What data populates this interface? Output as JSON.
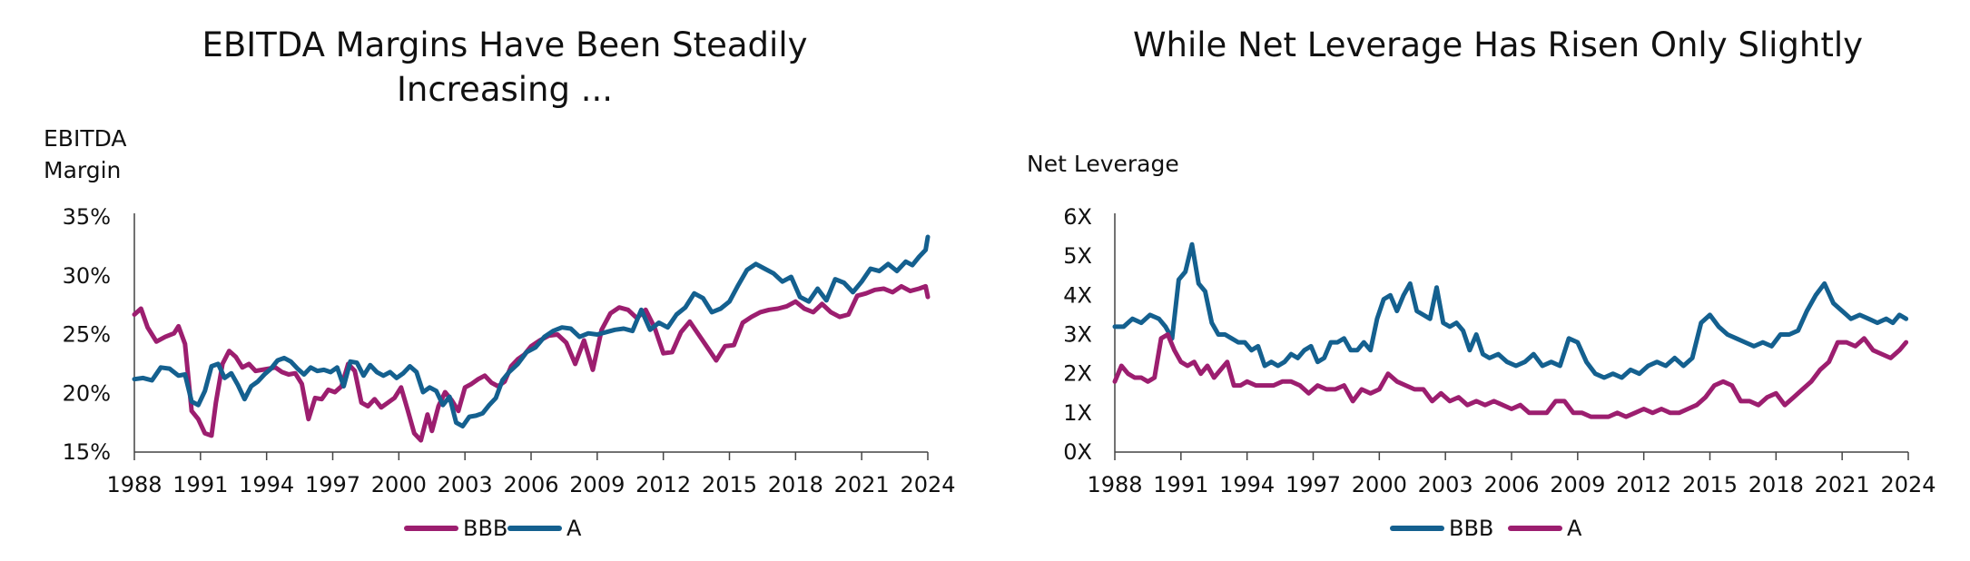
{
  "colors": {
    "bbb": "#9c1e6f",
    "a": "#14608f",
    "axis": "#444444",
    "text": "#111111"
  },
  "chart_data": [
    {
      "type": "line",
      "title": "EBITDA Margins Have Been Steadily Increasing ...",
      "title_lines": [
        "EBITDA Margins Have Been Steadily",
        "Increasing ..."
      ],
      "ylabel": "EBITDA Margin",
      "ylabel_lines": [
        "EBITDA",
        "Margin"
      ],
      "xlabel": "",
      "xlim": [
        1988,
        2024
      ],
      "ylim": [
        15,
        35
      ],
      "x_ticks": [
        "1988",
        "1991",
        "1994",
        "1997",
        "2000",
        "2003",
        "2006",
        "2009",
        "2012",
        "2015",
        "2018",
        "2021",
        "2024"
      ],
      "y_ticks": [
        "15%",
        "20%",
        "25%",
        "30%",
        "35%"
      ],
      "y_tick_values": [
        15,
        20,
        25,
        30,
        35
      ],
      "grid": false,
      "legend": "bottom",
      "series": [
        {
          "name": "BBB",
          "color_key": "bbb",
          "x": [
            1988.0,
            1988.3,
            1988.6,
            1989.0,
            1989.4,
            1989.8,
            1990.0,
            1990.3,
            1990.6,
            1990.9,
            1991.2,
            1991.5,
            1991.7,
            1992.0,
            1992.3,
            1992.6,
            1992.9,
            1993.2,
            1993.5,
            1993.8,
            1994.1,
            1994.4,
            1994.7,
            1995.0,
            1995.3,
            1995.6,
            1995.9,
            1996.2,
            1996.5,
            1996.8,
            1997.1,
            1997.4,
            1997.7,
            1998.0,
            1998.3,
            1998.6,
            1998.9,
            1999.2,
            1999.5,
            1999.8,
            2000.1,
            2000.4,
            2000.7,
            2001.0,
            2001.3,
            2001.5,
            2001.8,
            2002.1,
            2002.4,
            2002.7,
            2003.0,
            2003.3,
            2003.6,
            2003.9,
            2004.2,
            2004.5,
            2004.8,
            2005.1,
            2005.4,
            2005.7,
            2006.0,
            2006.4,
            2006.8,
            2007.2,
            2007.6,
            2008.0,
            2008.4,
            2008.8,
            2009.2,
            2009.6,
            2010.0,
            2010.4,
            2010.8,
            2011.2,
            2011.6,
            2012.0,
            2012.4,
            2012.8,
            2013.2,
            2013.6,
            2014.0,
            2014.4,
            2014.8,
            2015.2,
            2015.6,
            2016.0,
            2016.4,
            2016.8,
            2017.2,
            2017.6,
            2018.0,
            2018.4,
            2018.8,
            2019.2,
            2019.6,
            2020.0,
            2020.4,
            2020.8,
            2021.2,
            2021.6,
            2022.0,
            2022.4,
            2022.8,
            2023.2,
            2023.6,
            2023.9,
            2024.0
          ],
          "values": [
            26.7,
            27.2,
            25.6,
            24.4,
            24.8,
            25.1,
            25.7,
            24.2,
            18.5,
            17.8,
            16.6,
            16.4,
            19.2,
            22.5,
            23.6,
            23.1,
            22.2,
            22.5,
            21.9,
            22.0,
            22.1,
            22.2,
            21.8,
            21.6,
            21.7,
            20.8,
            17.8,
            19.6,
            19.5,
            20.3,
            20.1,
            20.6,
            22.5,
            21.9,
            19.2,
            18.9,
            19.5,
            18.8,
            19.2,
            19.6,
            20.5,
            18.6,
            16.6,
            16.0,
            18.2,
            16.8,
            18.9,
            20.1,
            19.4,
            18.5,
            20.5,
            20.8,
            21.2,
            21.5,
            20.9,
            20.6,
            21.0,
            22.3,
            22.9,
            23.3,
            24.0,
            24.5,
            24.9,
            25.0,
            24.3,
            22.5,
            24.5,
            22.0,
            25.4,
            26.8,
            27.3,
            27.1,
            26.4,
            27.1,
            25.6,
            23.4,
            23.5,
            25.2,
            26.1,
            25.0,
            23.9,
            22.8,
            24.0,
            24.1,
            26.0,
            26.5,
            26.9,
            27.1,
            27.2,
            27.4,
            27.8,
            27.2,
            26.9,
            27.6,
            26.9,
            26.5,
            26.7,
            28.3,
            28.5,
            28.8,
            28.9,
            28.6,
            29.1,
            28.7,
            28.9,
            29.1,
            28.2
          ]
        },
        {
          "name": "A",
          "color_key": "a",
          "x": [
            1988.0,
            1988.4,
            1988.8,
            1989.2,
            1989.6,
            1990.0,
            1990.3,
            1990.6,
            1990.9,
            1991.2,
            1991.5,
            1991.8,
            1992.1,
            1992.4,
            1992.7,
            1993.0,
            1993.3,
            1993.6,
            1993.9,
            1994.2,
            1994.5,
            1994.8,
            1995.1,
            1995.4,
            1995.7,
            1996.0,
            1996.3,
            1996.6,
            1996.9,
            1997.2,
            1997.5,
            1997.8,
            1998.1,
            1998.4,
            1998.7,
            1999.0,
            1999.3,
            1999.6,
            1999.9,
            2000.2,
            2000.5,
            2000.8,
            2001.1,
            2001.4,
            2001.7,
            2002.0,
            2002.3,
            2002.6,
            2002.9,
            2003.2,
            2003.5,
            2003.8,
            2004.1,
            2004.4,
            2004.7,
            2005.0,
            2005.4,
            2005.8,
            2006.2,
            2006.6,
            2007.0,
            2007.4,
            2007.8,
            2008.2,
            2008.6,
            2009.0,
            2009.4,
            2009.8,
            2010.2,
            2010.6,
            2011.0,
            2011.4,
            2011.8,
            2012.2,
            2012.6,
            2013.0,
            2013.4,
            2013.8,
            2014.2,
            2014.6,
            2015.0,
            2015.4,
            2015.8,
            2016.2,
            2016.6,
            2017.0,
            2017.4,
            2017.8,
            2018.2,
            2018.6,
            2019.0,
            2019.4,
            2019.8,
            2020.2,
            2020.6,
            2021.0,
            2021.4,
            2021.8,
            2022.2,
            2022.6,
            2023.0,
            2023.3,
            2023.6,
            2023.9,
            2024.0
          ],
          "values": [
            21.2,
            21.3,
            21.1,
            22.2,
            22.1,
            21.5,
            21.6,
            19.3,
            19.0,
            20.2,
            22.3,
            22.5,
            21.3,
            21.7,
            20.7,
            19.5,
            20.6,
            21.0,
            21.6,
            22.1,
            22.8,
            23.0,
            22.7,
            22.1,
            21.6,
            22.2,
            21.9,
            22.0,
            21.8,
            22.2,
            20.6,
            22.7,
            22.6,
            21.5,
            22.4,
            21.8,
            21.5,
            21.8,
            21.3,
            21.7,
            22.3,
            21.8,
            20.1,
            20.5,
            20.2,
            19.0,
            19.7,
            17.5,
            17.2,
            18.0,
            18.1,
            18.3,
            19.0,
            19.6,
            21.1,
            21.8,
            22.5,
            23.5,
            23.9,
            24.8,
            25.3,
            25.6,
            25.5,
            24.8,
            25.1,
            25.0,
            25.2,
            25.4,
            25.5,
            25.3,
            27.1,
            25.4,
            26.0,
            25.6,
            26.7,
            27.3,
            28.5,
            28.1,
            26.9,
            27.2,
            27.8,
            29.2,
            30.5,
            31.0,
            30.6,
            30.2,
            29.5,
            29.9,
            28.2,
            27.8,
            28.9,
            27.9,
            29.7,
            29.4,
            28.6,
            29.5,
            30.6,
            30.4,
            31.0,
            30.4,
            31.2,
            30.9,
            31.6,
            32.2,
            33.3
          ]
        }
      ]
    },
    {
      "type": "line",
      "title": "While Net Leverage Has Risen Only Slightly",
      "title_lines": [
        "While Net Leverage Has Risen Only Slightly"
      ],
      "ylabel": "Net Leverage",
      "ylabel_lines": [
        "Net Leverage"
      ],
      "xlabel": "",
      "xlim": [
        1988,
        2024
      ],
      "ylim": [
        0,
        6
      ],
      "x_ticks": [
        "1988",
        "1991",
        "1994",
        "1997",
        "2000",
        "2003",
        "2006",
        "2009",
        "2012",
        "2015",
        "2018",
        "2021",
        "2024"
      ],
      "y_ticks": [
        "0X",
        "1X",
        "2X",
        "3X",
        "4X",
        "5X",
        "6X"
      ],
      "y_tick_values": [
        0,
        1,
        2,
        3,
        4,
        5,
        6
      ],
      "grid": false,
      "legend": "bottom",
      "series": [
        {
          "name": "BBB",
          "color_key": "a",
          "x": [
            1988.0,
            1988.4,
            1988.8,
            1989.2,
            1989.6,
            1990.0,
            1990.3,
            1990.6,
            1990.9,
            1991.2,
            1991.5,
            1991.8,
            1992.1,
            1992.4,
            1992.7,
            1993.0,
            1993.3,
            1993.6,
            1993.9,
            1994.2,
            1994.5,
            1994.8,
            1995.1,
            1995.4,
            1995.7,
            1996.0,
            1996.3,
            1996.6,
            1996.9,
            1997.2,
            1997.5,
            1997.8,
            1998.1,
            1998.4,
            1998.7,
            1999.0,
            1999.3,
            1999.6,
            1999.9,
            2000.2,
            2000.5,
            2000.8,
            2001.1,
            2001.4,
            2001.7,
            2002.0,
            2002.3,
            2002.6,
            2002.9,
            2003.2,
            2003.5,
            2003.8,
            2004.1,
            2004.4,
            2004.7,
            2005.0,
            2005.4,
            2005.8,
            2006.2,
            2006.6,
            2007.0,
            2007.4,
            2007.8,
            2008.2,
            2008.6,
            2009.0,
            2009.4,
            2009.8,
            2010.2,
            2010.6,
            2011.0,
            2011.4,
            2011.8,
            2012.2,
            2012.6,
            2013.0,
            2013.4,
            2013.8,
            2014.2,
            2014.6,
            2015.0,
            2015.4,
            2015.8,
            2016.2,
            2016.6,
            2017.0,
            2017.4,
            2017.8,
            2018.2,
            2018.6,
            2019.0,
            2019.4,
            2019.8,
            2020.2,
            2020.6,
            2021.0,
            2021.4,
            2021.8,
            2022.2,
            2022.6,
            2023.0,
            2023.3,
            2023.6,
            2023.9
          ],
          "values": [
            3.2,
            3.2,
            3.4,
            3.3,
            3.5,
            3.4,
            3.2,
            2.9,
            4.4,
            4.6,
            5.3,
            4.3,
            4.1,
            3.3,
            3.0,
            3.0,
            2.9,
            2.8,
            2.8,
            2.6,
            2.7,
            2.2,
            2.3,
            2.2,
            2.3,
            2.5,
            2.4,
            2.6,
            2.7,
            2.3,
            2.4,
            2.8,
            2.8,
            2.9,
            2.6,
            2.6,
            2.8,
            2.6,
            3.4,
            3.9,
            4.0,
            3.6,
            4.0,
            4.3,
            3.6,
            3.5,
            3.4,
            4.2,
            3.3,
            3.2,
            3.3,
            3.1,
            2.6,
            3.0,
            2.5,
            2.4,
            2.5,
            2.3,
            2.2,
            2.3,
            2.5,
            2.2,
            2.3,
            2.2,
            2.9,
            2.8,
            2.3,
            2.0,
            1.9,
            2.0,
            1.9,
            2.1,
            2.0,
            2.2,
            2.3,
            2.2,
            2.4,
            2.2,
            2.4,
            3.3,
            3.5,
            3.2,
            3.0,
            2.9,
            2.8,
            2.7,
            2.8,
            2.7,
            3.0,
            3.0,
            3.1,
            3.6,
            4.0,
            4.3,
            3.8,
            3.6,
            3.4,
            3.5,
            3.4,
            3.3,
            3.4,
            3.3,
            3.5,
            3.4
          ]
        },
        {
          "name": "A",
          "color_key": "bbb",
          "x": [
            1988.0,
            1988.3,
            1988.6,
            1988.9,
            1989.2,
            1989.5,
            1989.8,
            1990.1,
            1990.4,
            1990.7,
            1991.0,
            1991.3,
            1991.6,
            1991.9,
            1992.2,
            1992.5,
            1992.8,
            1993.1,
            1993.4,
            1993.7,
            1994.0,
            1994.4,
            1994.8,
            1995.2,
            1995.6,
            1996.0,
            1996.4,
            1996.8,
            1997.2,
            1997.6,
            1998.0,
            1998.4,
            1998.8,
            1999.2,
            1999.6,
            2000.0,
            2000.4,
            2000.8,
            2001.2,
            2001.6,
            2002.0,
            2002.4,
            2002.8,
            2003.2,
            2003.6,
            2004.0,
            2004.4,
            2004.8,
            2005.2,
            2005.6,
            2006.0,
            2006.4,
            2006.8,
            2007.2,
            2007.6,
            2008.0,
            2008.4,
            2008.8,
            2009.2,
            2009.6,
            2010.0,
            2010.4,
            2010.8,
            2011.2,
            2011.6,
            2012.0,
            2012.4,
            2012.8,
            2013.2,
            2013.6,
            2014.0,
            2014.4,
            2014.8,
            2015.2,
            2015.6,
            2016.0,
            2016.4,
            2016.8,
            2017.2,
            2017.6,
            2018.0,
            2018.4,
            2018.8,
            2019.2,
            2019.6,
            2020.0,
            2020.4,
            2020.8,
            2021.2,
            2021.6,
            2022.0,
            2022.4,
            2022.8,
            2023.2,
            2023.6,
            2023.9
          ],
          "values": [
            1.8,
            2.2,
            2.0,
            1.9,
            1.9,
            1.8,
            1.9,
            2.9,
            3.0,
            2.6,
            2.3,
            2.2,
            2.3,
            2.0,
            2.2,
            1.9,
            2.1,
            2.3,
            1.7,
            1.7,
            1.8,
            1.7,
            1.7,
            1.7,
            1.8,
            1.8,
            1.7,
            1.5,
            1.7,
            1.6,
            1.6,
            1.7,
            1.3,
            1.6,
            1.5,
            1.6,
            2.0,
            1.8,
            1.7,
            1.6,
            1.6,
            1.3,
            1.5,
            1.3,
            1.4,
            1.2,
            1.3,
            1.2,
            1.3,
            1.2,
            1.1,
            1.2,
            1.0,
            1.0,
            1.0,
            1.3,
            1.3,
            1.0,
            1.0,
            0.9,
            0.9,
            0.9,
            1.0,
            0.9,
            1.0,
            1.1,
            1.0,
            1.1,
            1.0,
            1.0,
            1.1,
            1.2,
            1.4,
            1.7,
            1.8,
            1.7,
            1.3,
            1.3,
            1.2,
            1.4,
            1.5,
            1.2,
            1.4,
            1.6,
            1.8,
            2.1,
            2.3,
            2.8,
            2.8,
            2.7,
            2.9,
            2.6,
            2.5,
            2.4,
            2.6,
            2.8
          ]
        }
      ]
    }
  ]
}
